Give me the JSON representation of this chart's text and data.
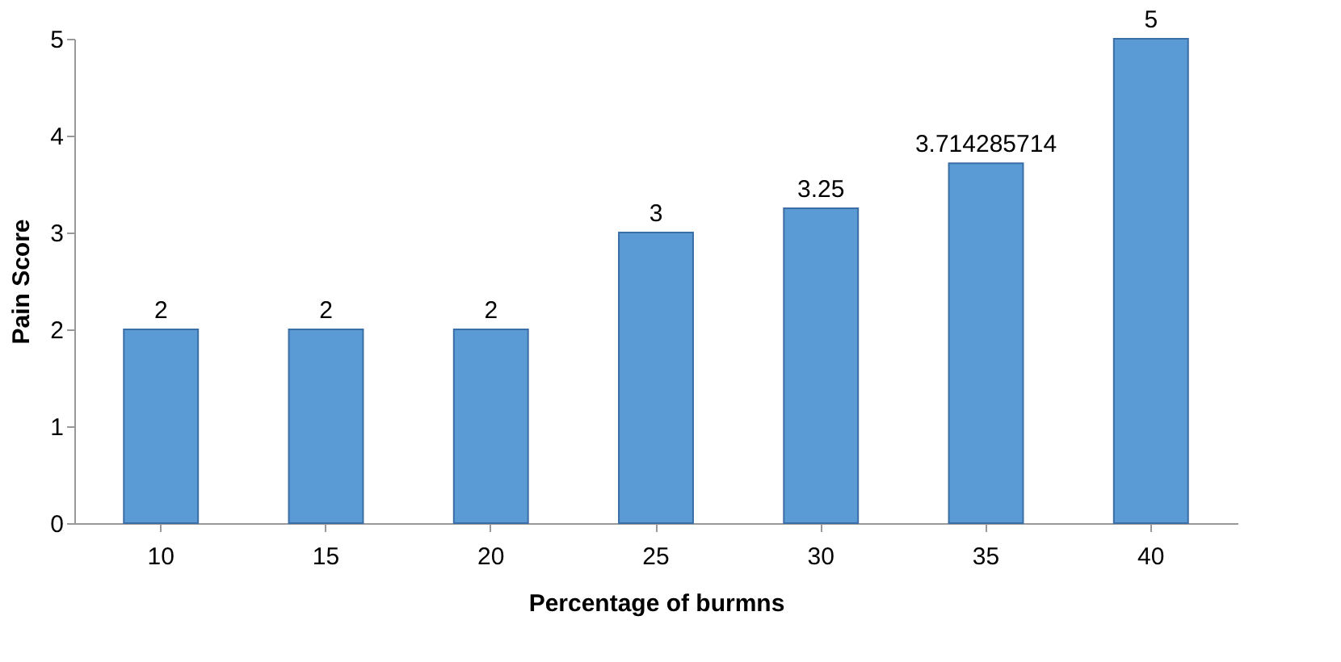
{
  "chart_data": {
    "type": "bar",
    "xlabel": "Percentage of burmns",
    "ylabel": "Pain Score",
    "categories": [
      "10",
      "15",
      "20",
      "25",
      "30",
      "35",
      "40"
    ],
    "values": [
      2,
      2,
      2,
      3,
      3.25,
      3.714285714,
      5
    ],
    "color": "#5b9bd5",
    "ylim": [
      0,
      5
    ],
    "yticks": [
      0,
      1,
      2,
      3,
      4,
      5
    ],
    "grid": false,
    "data_labels": true
  }
}
